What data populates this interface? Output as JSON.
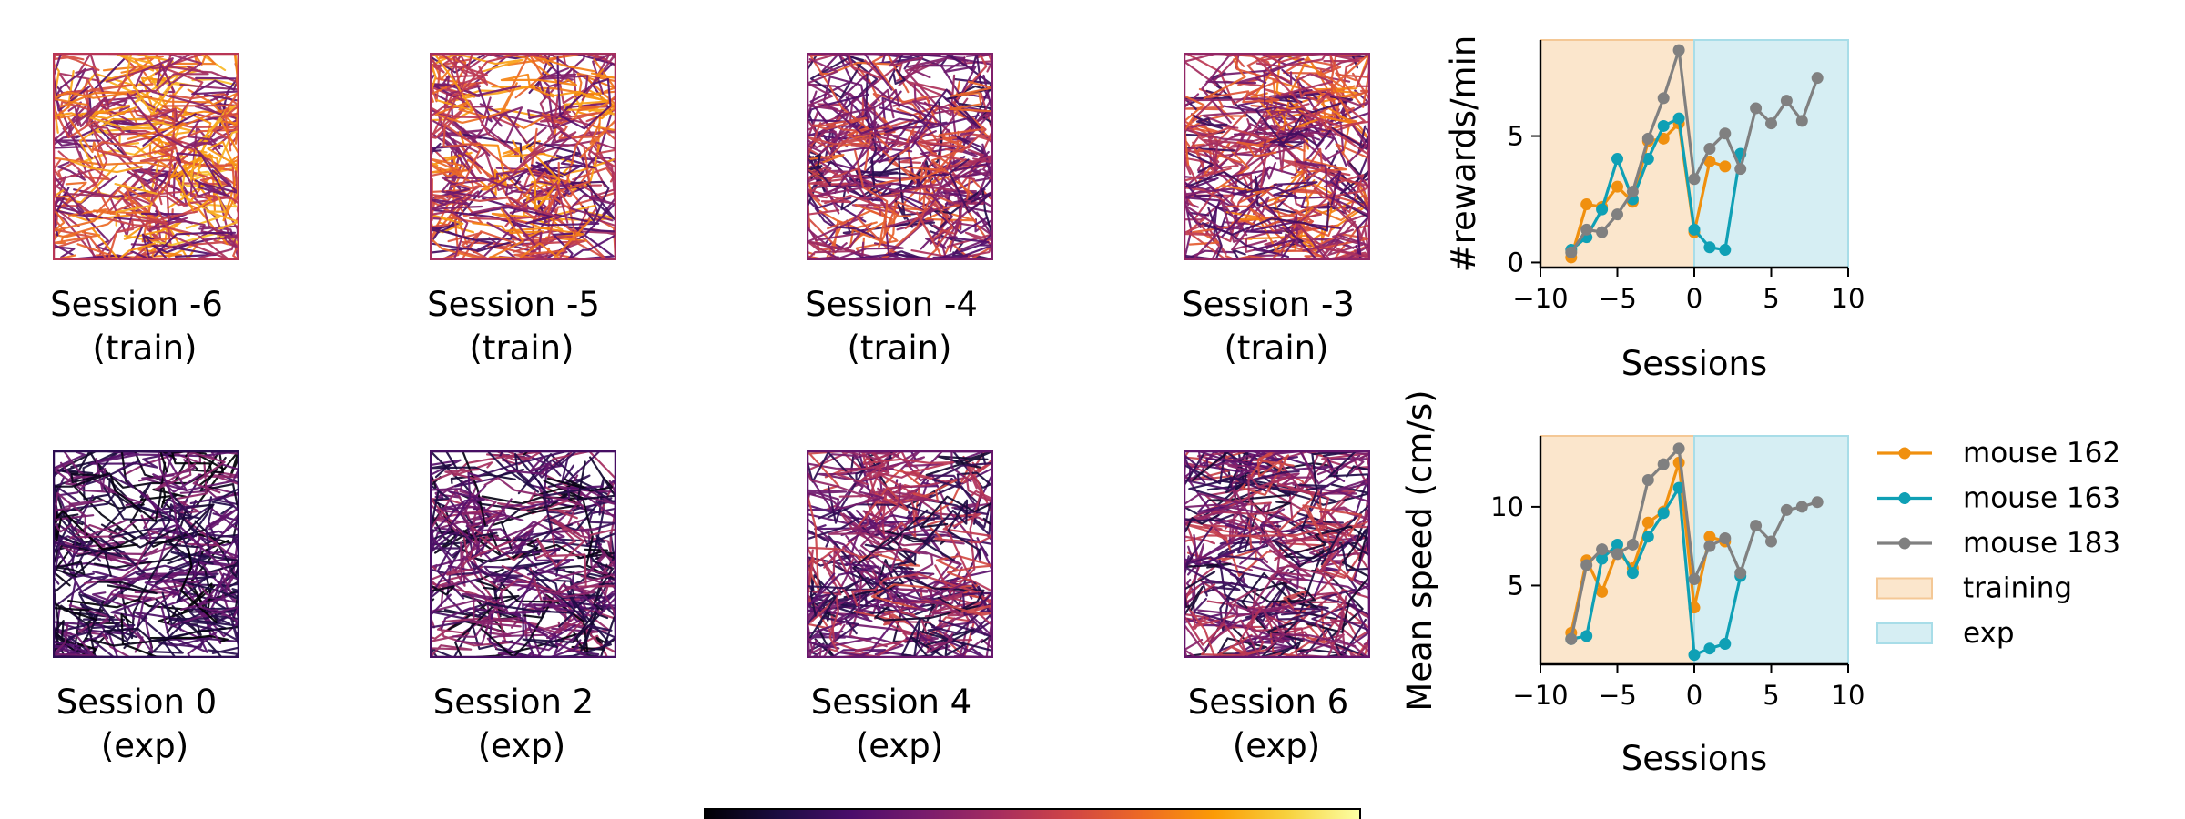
{
  "panels": [
    {
      "label": "Session -6",
      "phase": "(train)",
      "session": -6,
      "colormap": "inferno",
      "brightness": 0.55
    },
    {
      "label": "Session -5",
      "phase": "(train)",
      "session": -5,
      "colormap": "inferno",
      "brightness": 0.5
    },
    {
      "label": "Session -4",
      "phase": "(train)",
      "session": -4,
      "colormap": "inferno",
      "brightness": 0.4
    },
    {
      "label": "Session -3",
      "phase": "(train)",
      "session": -3,
      "colormap": "inferno",
      "brightness": 0.45
    },
    {
      "label": "Session 0",
      "phase": "(exp)",
      "session": 0,
      "colormap": "inferno",
      "brightness": 0.18
    },
    {
      "label": "Session 2",
      "phase": "(exp)",
      "session": 2,
      "colormap": "inferno",
      "brightness": 0.24
    },
    {
      "label": "Session 4",
      "phase": "(exp)",
      "session": 4,
      "colormap": "inferno",
      "brightness": 0.33
    },
    {
      "label": "Session 6",
      "phase": "(exp)",
      "session": 6,
      "colormap": "inferno",
      "brightness": 0.32
    }
  ],
  "colorbar": {
    "colormap": "inferno"
  },
  "chart_data": [
    {
      "type": "line",
      "title": "",
      "xlabel": "Sessions",
      "ylabel": "#rewards/min",
      "xlim": [
        -10,
        10
      ],
      "ylim": [
        -0.2,
        8.8
      ],
      "xticks": [
        -10,
        -5,
        0,
        5,
        10
      ],
      "yticks": [
        0,
        5
      ],
      "xtick_labels": [
        "−10",
        "−5",
        "0",
        "5",
        "10"
      ],
      "ytick_labels": [
        "0",
        "5"
      ],
      "grid": false,
      "shaded_regions": [
        {
          "name": "training",
          "x_range": [
            -10,
            0
          ],
          "color": "#fbe6cc"
        },
        {
          "name": "exp",
          "x_range": [
            0,
            10
          ],
          "color": "#d6eef3"
        }
      ],
      "series": [
        {
          "name": "mouse 162",
          "color": "#f0900f",
          "x": [
            -8,
            -7,
            -6,
            -5,
            -4,
            -3,
            -2,
            -1,
            0,
            1,
            2
          ],
          "y": [
            0.2,
            2.3,
            2.2,
            3.0,
            2.4,
            4.8,
            4.9,
            5.5,
            1.2,
            4.0,
            3.8
          ]
        },
        {
          "name": "mouse 163",
          "color": "#0fa0b5",
          "x": [
            -8,
            -7,
            -6,
            -5,
            -4,
            -3,
            -2,
            -1,
            0,
            1,
            2,
            3
          ],
          "y": [
            0.5,
            1.0,
            2.1,
            4.1,
            2.5,
            4.1,
            5.4,
            5.7,
            1.3,
            0.6,
            0.5,
            4.3
          ]
        },
        {
          "name": "mouse 183",
          "color": "#808080",
          "x": [
            -8,
            -7,
            -6,
            -5,
            -4,
            -3,
            -2,
            -1,
            0,
            1,
            2,
            3,
            4,
            5,
            6,
            7,
            8
          ],
          "y": [
            0.4,
            1.3,
            1.2,
            1.9,
            2.8,
            4.9,
            6.5,
            8.4,
            3.3,
            4.5,
            5.1,
            3.7,
            6.1,
            5.5,
            6.4,
            5.6,
            7.3
          ]
        }
      ]
    },
    {
      "type": "line",
      "title": "",
      "xlabel": "Sessions",
      "ylabel": "Mean speed (cm/s)",
      "xlim": [
        -10,
        10
      ],
      "ylim": [
        0,
        14.5
      ],
      "xticks": [
        -10,
        -5,
        0,
        5,
        10
      ],
      "yticks": [
        5,
        10
      ],
      "xtick_labels": [
        "−10",
        "−5",
        "0",
        "5",
        "10"
      ],
      "ytick_labels": [
        "5",
        "10"
      ],
      "grid": false,
      "legend_position": "outside-right",
      "shaded_regions": [
        {
          "name": "training",
          "x_range": [
            -10,
            0
          ],
          "color": "#fbe6cc"
        },
        {
          "name": "exp",
          "x_range": [
            0,
            10
          ],
          "color": "#d6eef3"
        }
      ],
      "series": [
        {
          "name": "mouse 162",
          "color": "#f0900f",
          "x": [
            -8,
            -7,
            -6,
            -5,
            -4,
            -3,
            -2,
            -1,
            0,
            1,
            2
          ],
          "y": [
            2.0,
            6.6,
            4.6,
            7.2,
            6.1,
            9.0,
            9.7,
            12.8,
            3.6,
            8.1,
            7.8
          ]
        },
        {
          "name": "mouse 163",
          "color": "#0fa0b5",
          "x": [
            -8,
            -7,
            -6,
            -5,
            -4,
            -3,
            -2,
            -1,
            0,
            1,
            2,
            3
          ],
          "y": [
            1.6,
            1.8,
            6.7,
            7.6,
            5.8,
            8.1,
            9.6,
            11.2,
            0.6,
            1.0,
            1.3,
            5.6
          ]
        },
        {
          "name": "mouse 183",
          "color": "#808080",
          "x": [
            -8,
            -7,
            -6,
            -5,
            -4,
            -3,
            -2,
            -1,
            0,
            1,
            2,
            3,
            4,
            5,
            6,
            7,
            8
          ],
          "y": [
            1.6,
            6.3,
            7.3,
            7.0,
            7.6,
            11.7,
            12.7,
            13.7,
            5.4,
            7.5,
            8.0,
            5.8,
            8.8,
            7.8,
            9.8,
            10.0,
            10.3
          ]
        }
      ],
      "legend": [
        {
          "label": "mouse 162",
          "kind": "line",
          "color": "#f0900f"
        },
        {
          "label": "mouse 163",
          "kind": "line",
          "color": "#0fa0b5"
        },
        {
          "label": "mouse 183",
          "kind": "line",
          "color": "#808080"
        },
        {
          "label": "training",
          "kind": "patch",
          "color": "#fbe6cc"
        },
        {
          "label": "exp",
          "kind": "patch",
          "color": "#d6eef3"
        }
      ]
    }
  ]
}
